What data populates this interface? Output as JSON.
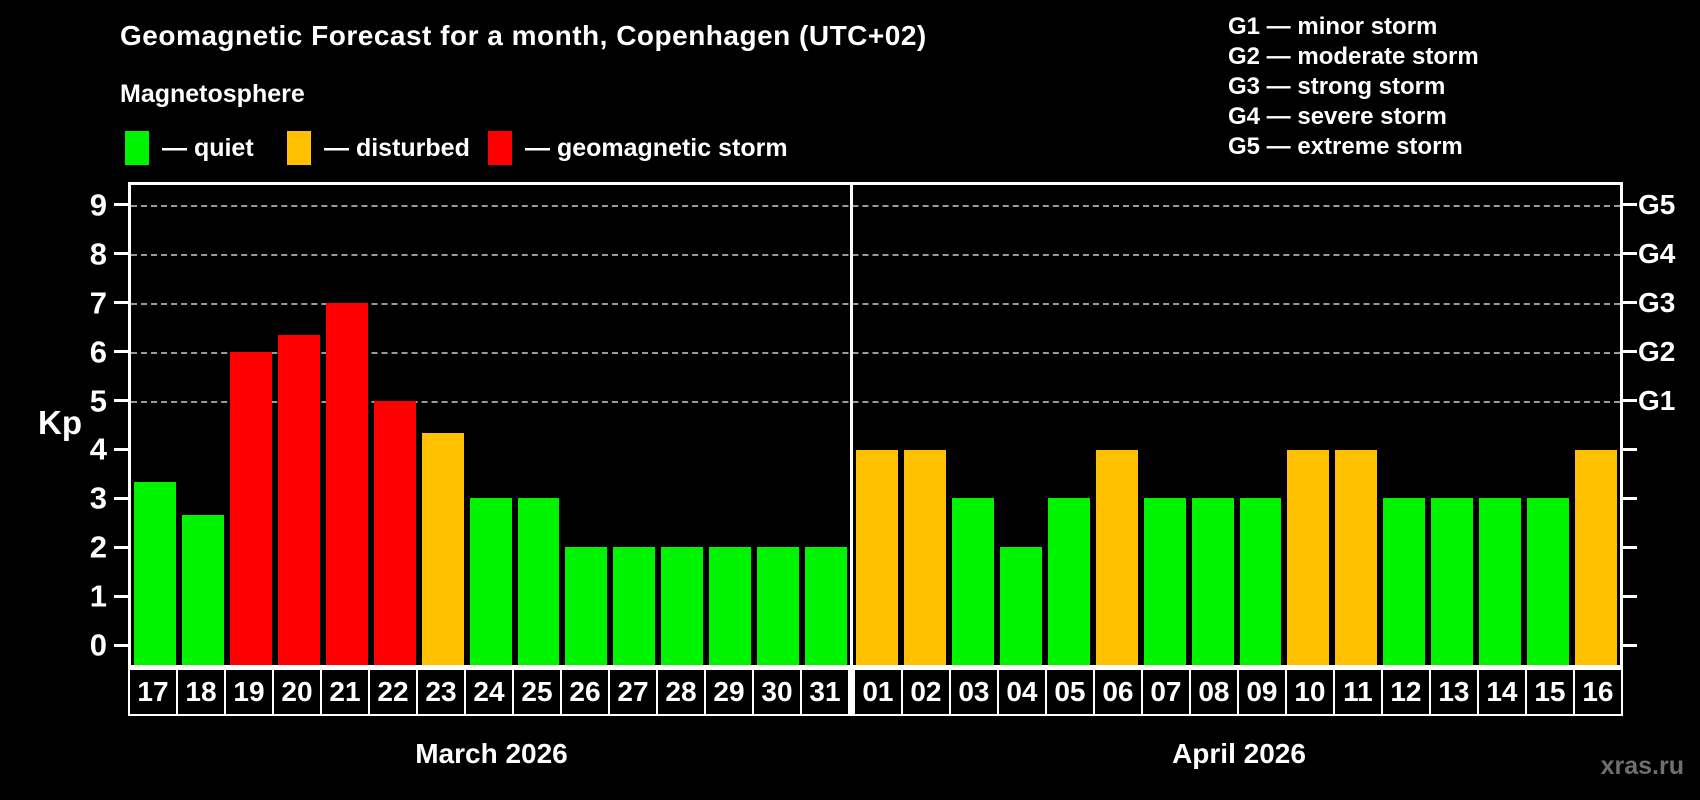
{
  "title": "Geomagnetic Forecast for a month, Copenhagen (UTC+02)",
  "subtitle": "Magnetosphere",
  "watermark": "xras.ru",
  "colors": {
    "quiet": "#00f400",
    "disturbed": "#ffc000",
    "storm": "#ff0000",
    "grid": "#9a9a9a",
    "axis": "#ffffff",
    "background": "#000000",
    "watermark": "#6f6f6f"
  },
  "legend": [
    {
      "status": "quiet",
      "label": "— quiet"
    },
    {
      "status": "disturbed",
      "label": "— disturbed"
    },
    {
      "status": "storm",
      "label": "— geomagnetic storm"
    }
  ],
  "g_legend": [
    "G1 — minor storm",
    "G2 — moderate storm",
    "G3 — strong storm",
    "G4 — severe storm",
    "G5 — extreme storm"
  ],
  "chart_data": {
    "type": "bar",
    "title": "Geomagnetic Forecast for a month, Copenhagen (UTC+02)",
    "subtitle": "Magnetosphere",
    "ylabel": "Kp",
    "ylim": [
      -0.4,
      9.4
    ],
    "y_ticks": [
      0,
      1,
      2,
      3,
      4,
      5,
      6,
      7,
      8,
      9
    ],
    "gridlines_kp": [
      5,
      6,
      7,
      8,
      9
    ],
    "grid": "dashed, only at storm levels 5-9",
    "right_axis_labels": [
      {
        "label": "G1",
        "kp": 5
      },
      {
        "label": "G2",
        "kp": 6
      },
      {
        "label": "G3",
        "kp": 7
      },
      {
        "label": "G4",
        "kp": 8
      },
      {
        "label": "G5",
        "kp": 9
      }
    ],
    "months": [
      {
        "label": "March 2026",
        "days": [
          {
            "day": "17",
            "kp": 3.33,
            "status": "quiet"
          },
          {
            "day": "18",
            "kp": 2.67,
            "status": "quiet"
          },
          {
            "day": "19",
            "kp": 6.0,
            "status": "storm"
          },
          {
            "day": "20",
            "kp": 6.33,
            "status": "storm"
          },
          {
            "day": "21",
            "kp": 7.0,
            "status": "storm"
          },
          {
            "day": "22",
            "kp": 5.0,
            "status": "storm"
          },
          {
            "day": "23",
            "kp": 4.33,
            "status": "disturbed"
          },
          {
            "day": "24",
            "kp": 3.0,
            "status": "quiet"
          },
          {
            "day": "25",
            "kp": 3.0,
            "status": "quiet"
          },
          {
            "day": "26",
            "kp": 2.0,
            "status": "quiet"
          },
          {
            "day": "27",
            "kp": 2.0,
            "status": "quiet"
          },
          {
            "day": "28",
            "kp": 2.0,
            "status": "quiet"
          },
          {
            "day": "29",
            "kp": 2.0,
            "status": "quiet"
          },
          {
            "day": "30",
            "kp": 2.0,
            "status": "quiet"
          },
          {
            "day": "31",
            "kp": 2.0,
            "status": "quiet"
          }
        ]
      },
      {
        "label": "April 2026",
        "days": [
          {
            "day": "01",
            "kp": 4.0,
            "status": "disturbed"
          },
          {
            "day": "02",
            "kp": 4.0,
            "status": "disturbed"
          },
          {
            "day": "03",
            "kp": 3.0,
            "status": "quiet"
          },
          {
            "day": "04",
            "kp": 2.0,
            "status": "quiet"
          },
          {
            "day": "05",
            "kp": 3.0,
            "status": "quiet"
          },
          {
            "day": "06",
            "kp": 4.0,
            "status": "disturbed"
          },
          {
            "day": "07",
            "kp": 3.0,
            "status": "quiet"
          },
          {
            "day": "08",
            "kp": 3.0,
            "status": "quiet"
          },
          {
            "day": "09",
            "kp": 3.0,
            "status": "quiet"
          },
          {
            "day": "10",
            "kp": 4.0,
            "status": "disturbed"
          },
          {
            "day": "11",
            "kp": 4.0,
            "status": "disturbed"
          },
          {
            "day": "12",
            "kp": 3.0,
            "status": "quiet"
          },
          {
            "day": "13",
            "kp": 3.0,
            "status": "quiet"
          },
          {
            "day": "14",
            "kp": 3.0,
            "status": "quiet"
          },
          {
            "day": "15",
            "kp": 3.0,
            "status": "quiet"
          },
          {
            "day": "16",
            "kp": 4.0,
            "status": "disturbed"
          }
        ]
      }
    ]
  }
}
